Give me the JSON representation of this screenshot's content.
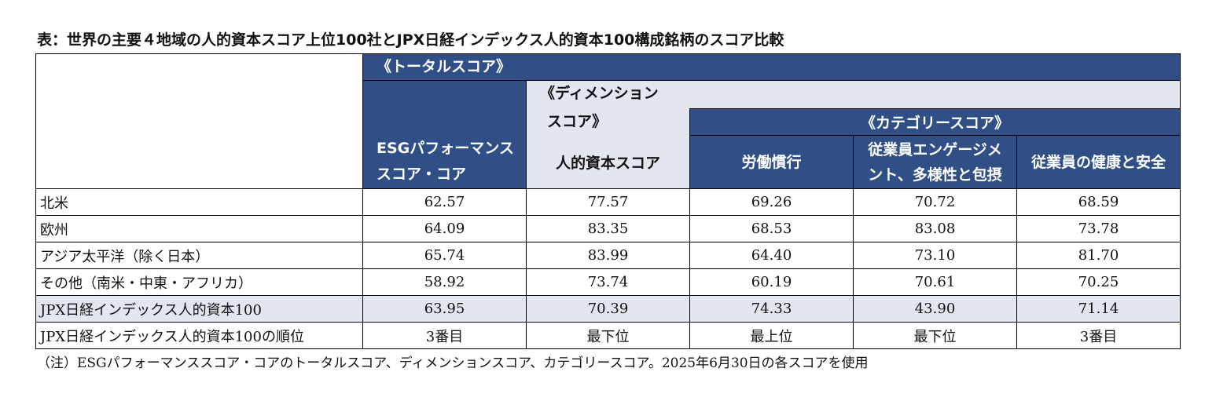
{
  "title": "表：世界の主要４地域の人的資本スコア上位100社とJPX日経インデックス人的資本100構成銘柄のスコア比較",
  "header": {
    "total_score_label": "《トータルスコア》",
    "dimension_label_line1": "《ディメンション",
    "dimension_label_line2": "スコア》",
    "category_label": "《カテゴリースコア》",
    "col_esg_line1": "ESGパフォーマンス",
    "col_esg_line2": "スコア・コア",
    "col_human_capital": "人的資本スコア",
    "col_labor": "労働慣行",
    "col_engagement_line1": "従業員エンゲージメ",
    "col_engagement_line2": "ント、多様性と包摂",
    "col_health": "従業員の健康と安全"
  },
  "rows": [
    {
      "label": "北米",
      "values": [
        "62.57",
        "77.57",
        "69.26",
        "70.72",
        "68.59"
      ]
    },
    {
      "label": "欧州",
      "values": [
        "64.09",
        "83.35",
        "68.53",
        "83.08",
        "73.78"
      ]
    },
    {
      "label": "アジア太平洋（除く日本）",
      "values": [
        "65.74",
        "83.99",
        "64.40",
        "73.10",
        "81.70"
      ]
    },
    {
      "label": "その他（南米・中東・アフリカ）",
      "values": [
        "58.92",
        "73.74",
        "60.19",
        "70.61",
        "70.25"
      ]
    },
    {
      "label": "JPX日経インデックス人的資本100",
      "values": [
        "63.95",
        "70.39",
        "74.33",
        "43.90",
        "71.14"
      ]
    },
    {
      "label": "JPX日経インデックス人的資本100の順位",
      "values": [
        "3番目",
        "最下位",
        "最上位",
        "最下位",
        "3番目"
      ]
    }
  ],
  "note": "（注）ESGパフォーマンススコア・コアのトータルスコア、ディメンションスコア、カテゴリースコア。2025年6月30日の各スコアを使用",
  "colors": {
    "header_blue": "#2f4f86",
    "shade_gray": "#e3e6ee"
  }
}
